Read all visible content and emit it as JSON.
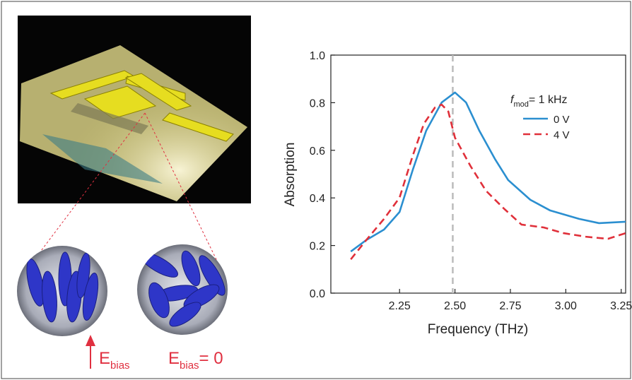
{
  "chart_data": {
    "type": "line",
    "xlabel": "Frequency (THz)",
    "ylabel": "Absorption",
    "xlim": [
      1.94,
      3.27
    ],
    "ylim": [
      0,
      1
    ],
    "xticks": [
      2.25,
      {
        "value": 2.5,
        "label": "2.50"
      },
      2.75,
      {
        "value": 3,
        "label": "3.00"
      },
      3.25
    ],
    "yticks": [
      {
        "value": 0,
        "label": "0.0"
      },
      0.2,
      0.4,
      0.6,
      0.8,
      {
        "value": 1,
        "label": "1.0"
      }
    ],
    "vline": 2.49,
    "legend_title": {
      "italic": "f",
      "sub": "mod",
      "text": "= 1 kHz"
    },
    "series": [
      {
        "name": "0 V",
        "color": "#2b8fd0",
        "dash": false,
        "x": [
          2.03,
          2.1,
          2.18,
          2.25,
          2.31,
          2.37,
          2.44,
          2.5,
          2.55,
          2.61,
          2.68,
          2.74,
          2.84,
          2.93,
          3.06,
          3.15,
          3.27
        ],
        "values": [
          0.175,
          0.223,
          0.267,
          0.341,
          0.519,
          0.682,
          0.801,
          0.843,
          0.801,
          0.682,
          0.564,
          0.475,
          0.392,
          0.347,
          0.312,
          0.294,
          0.3
        ]
      },
      {
        "name": "4 V",
        "color": "#e0303a",
        "dash": true,
        "x": [
          2.03,
          2.1,
          2.18,
          2.25,
          2.31,
          2.36,
          2.41,
          2.44,
          2.47,
          2.5,
          2.57,
          2.64,
          2.72,
          2.8,
          2.9,
          2.99,
          3.09,
          3.19,
          3.27
        ],
        "values": [
          0.142,
          0.223,
          0.312,
          0.401,
          0.579,
          0.712,
          0.78,
          0.792,
          0.763,
          0.653,
          0.534,
          0.43,
          0.356,
          0.288,
          0.276,
          0.252,
          0.237,
          0.228,
          0.252
        ]
      }
    ]
  },
  "annotations": {
    "left": {
      "main": "E",
      "sub": "bias"
    },
    "right": {
      "main": "E",
      "sub": "bias",
      "rest": "= 0"
    }
  }
}
